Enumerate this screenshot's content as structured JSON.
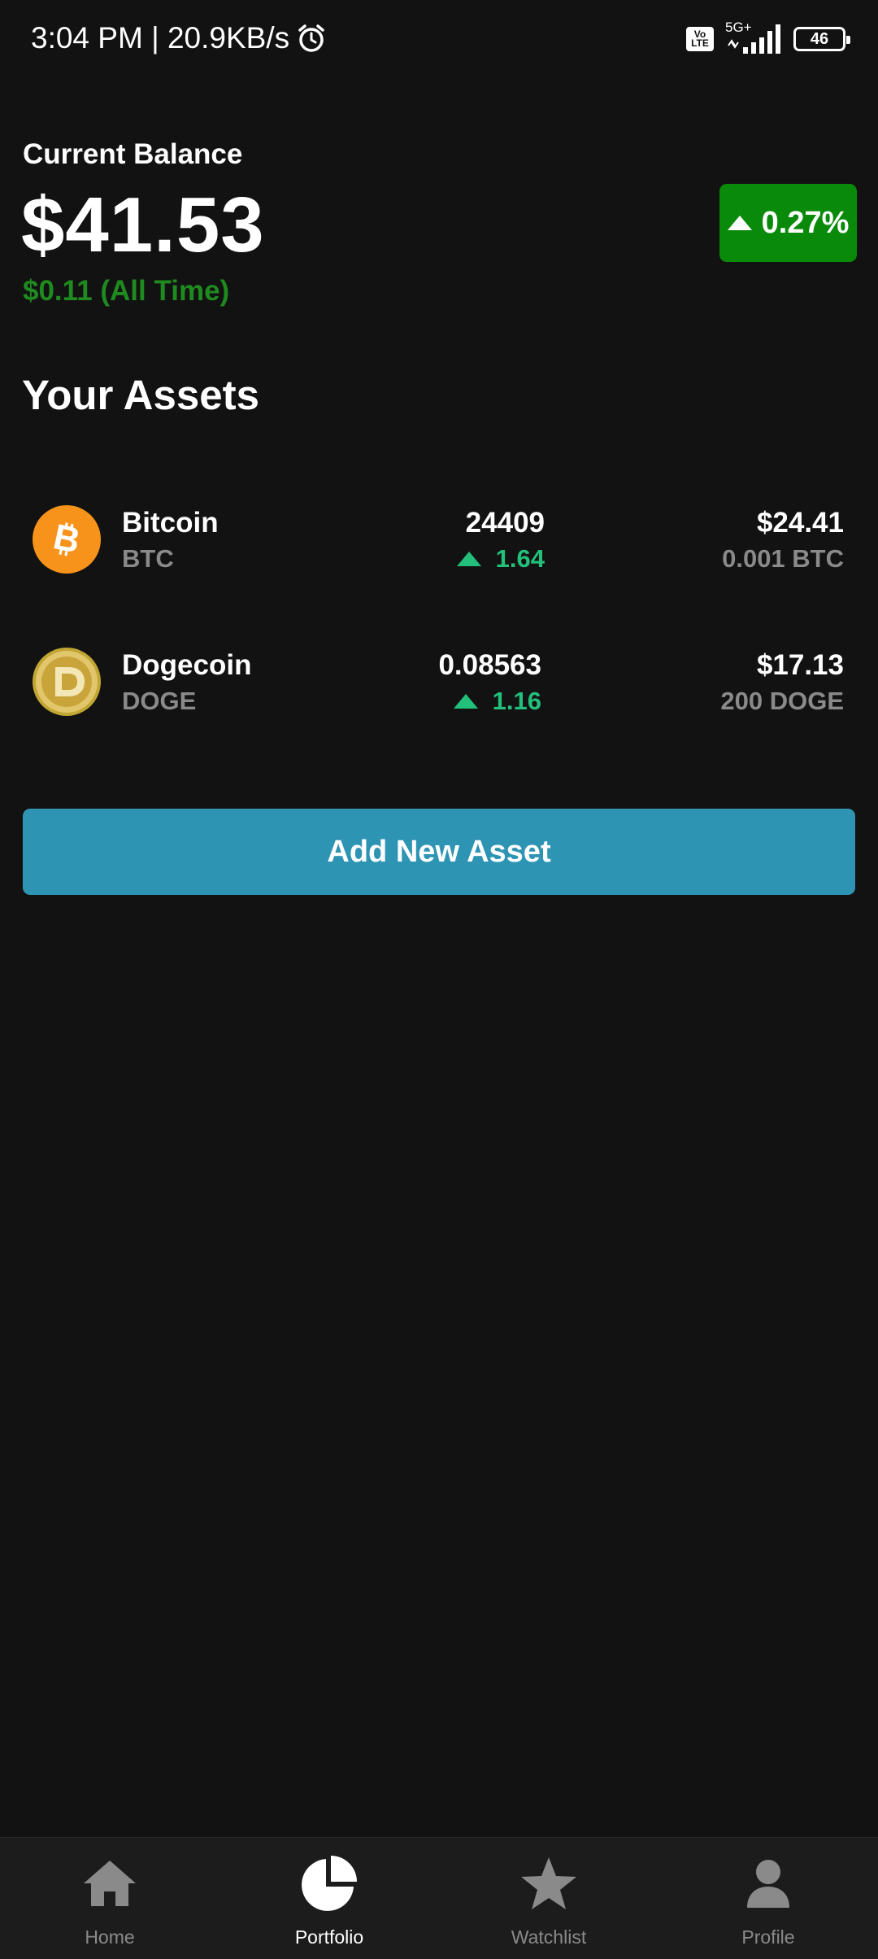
{
  "status": {
    "time_speed": "3:04 PM | 20.9KB/s",
    "volte": "Vo LTE",
    "network": "5G+",
    "battery": "46"
  },
  "balance": {
    "label": "Current Balance",
    "value": "$41.53",
    "change": "$0.11 (All Time)",
    "percent": "0.27%"
  },
  "assets_title": "Your Assets",
  "assets": [
    {
      "name": "Bitcoin",
      "symbol": "BTC",
      "price": "24409",
      "change": "1.64",
      "value": "$24.41",
      "holding": "0.001 BTC"
    },
    {
      "name": "Dogecoin",
      "symbol": "DOGE",
      "price": "0.08563",
      "change": "1.16",
      "value": "$17.13",
      "holding": "200 DOGE"
    }
  ],
  "add_button": "Add New Asset",
  "nav": {
    "home": "Home",
    "portfolio": "Portfolio",
    "watchlist": "Watchlist",
    "profile": "Profile"
  },
  "colors": {
    "background": "#121212",
    "positive": "#22c07a",
    "badge": "#0a8a0a",
    "button": "#2e94b3"
  }
}
